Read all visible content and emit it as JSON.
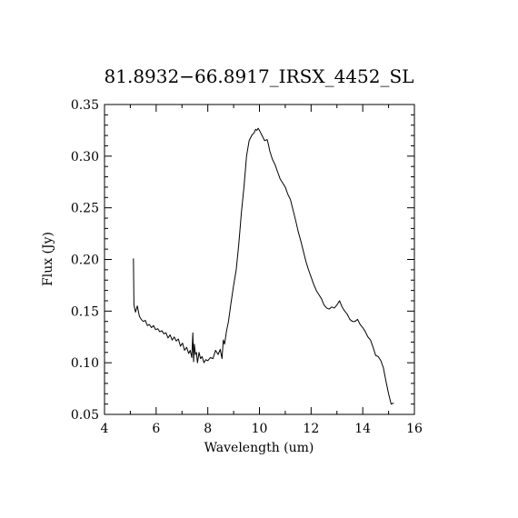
{
  "chart_data": {
    "type": "line",
    "title": "81.8932−66.8917_IRSX_4452_SL",
    "xlabel": "Wavelength (um)",
    "ylabel": "Flux (Jy)",
    "xlim": [
      4,
      16
    ],
    "ylim": [
      0.05,
      0.35
    ],
    "x_ticks": [
      4,
      6,
      8,
      10,
      12,
      14,
      16
    ],
    "x_tick_labels": [
      "4",
      "6",
      "8",
      "10",
      "12",
      "14",
      "16"
    ],
    "y_ticks": [
      0.05,
      0.1,
      0.15,
      0.2,
      0.25,
      0.3,
      0.35
    ],
    "y_tick_labels": [
      "0.05",
      "0.10",
      "0.15",
      "0.20",
      "0.25",
      "0.30",
      "0.35"
    ],
    "grid": false,
    "line_color": "#000000",
    "series": [
      {
        "x": [
          5.12,
          5.14,
          5.2,
          5.27,
          5.35,
          5.42,
          5.5,
          5.58,
          5.66,
          5.74,
          5.82,
          5.9,
          5.98,
          6.06,
          6.14,
          6.22,
          6.3,
          6.38,
          6.46,
          6.54,
          6.62,
          6.7,
          6.78,
          6.86,
          6.94,
          7.02,
          7.1,
          7.18,
          7.26,
          7.32,
          7.38,
          7.42,
          7.45,
          7.48,
          7.52,
          7.56,
          7.6,
          7.66,
          7.72,
          7.78,
          7.85,
          7.92,
          8.0,
          8.1,
          8.2,
          8.3,
          8.4,
          8.48,
          8.55,
          8.6,
          8.65,
          8.72,
          8.8,
          8.9,
          9.0,
          9.1,
          9.2,
          9.3,
          9.4,
          9.5,
          9.6,
          9.7,
          9.8,
          9.85,
          9.9,
          9.95,
          10.0,
          10.1,
          10.2,
          10.3,
          10.35,
          10.4,
          10.5,
          10.6,
          10.7,
          10.8,
          10.9,
          11.0,
          11.1,
          11.2,
          11.3,
          11.4,
          11.5,
          11.6,
          11.7,
          11.8,
          11.9,
          12.0,
          12.1,
          12.2,
          12.3,
          12.4,
          12.5,
          12.6,
          12.7,
          12.8,
          12.9,
          13.0,
          13.1,
          13.2,
          13.3,
          13.4,
          13.5,
          13.6,
          13.7,
          13.8,
          13.9,
          14.0,
          14.1,
          14.2,
          14.3,
          14.4,
          14.5,
          14.6,
          14.7,
          14.8,
          14.9,
          15.0,
          15.1,
          15.2
        ],
        "y": [
          0.201,
          0.156,
          0.149,
          0.155,
          0.145,
          0.142,
          0.14,
          0.141,
          0.136,
          0.137,
          0.134,
          0.136,
          0.132,
          0.133,
          0.13,
          0.131,
          0.128,
          0.129,
          0.124,
          0.127,
          0.122,
          0.125,
          0.121,
          0.123,
          0.116,
          0.119,
          0.112,
          0.115,
          0.109,
          0.112,
          0.105,
          0.129,
          0.101,
          0.118,
          0.108,
          0.11,
          0.1,
          0.11,
          0.104,
          0.106,
          0.1,
          0.103,
          0.102,
          0.105,
          0.104,
          0.112,
          0.108,
          0.113,
          0.104,
          0.122,
          0.118,
          0.13,
          0.14,
          0.158,
          0.175,
          0.19,
          0.215,
          0.245,
          0.27,
          0.3,
          0.315,
          0.32,
          0.323,
          0.326,
          0.325,
          0.327,
          0.325,
          0.32,
          0.315,
          0.316,
          0.311,
          0.305,
          0.297,
          0.292,
          0.285,
          0.278,
          0.274,
          0.27,
          0.263,
          0.258,
          0.248,
          0.238,
          0.227,
          0.218,
          0.208,
          0.198,
          0.19,
          0.183,
          0.176,
          0.17,
          0.166,
          0.162,
          0.156,
          0.153,
          0.152,
          0.154,
          0.153,
          0.156,
          0.16,
          0.154,
          0.15,
          0.147,
          0.142,
          0.14,
          0.14,
          0.142,
          0.137,
          0.134,
          0.13,
          0.125,
          0.122,
          0.115,
          0.107,
          0.106,
          0.102,
          0.095,
          0.082,
          0.07,
          0.06,
          0.061
        ]
      }
    ]
  }
}
